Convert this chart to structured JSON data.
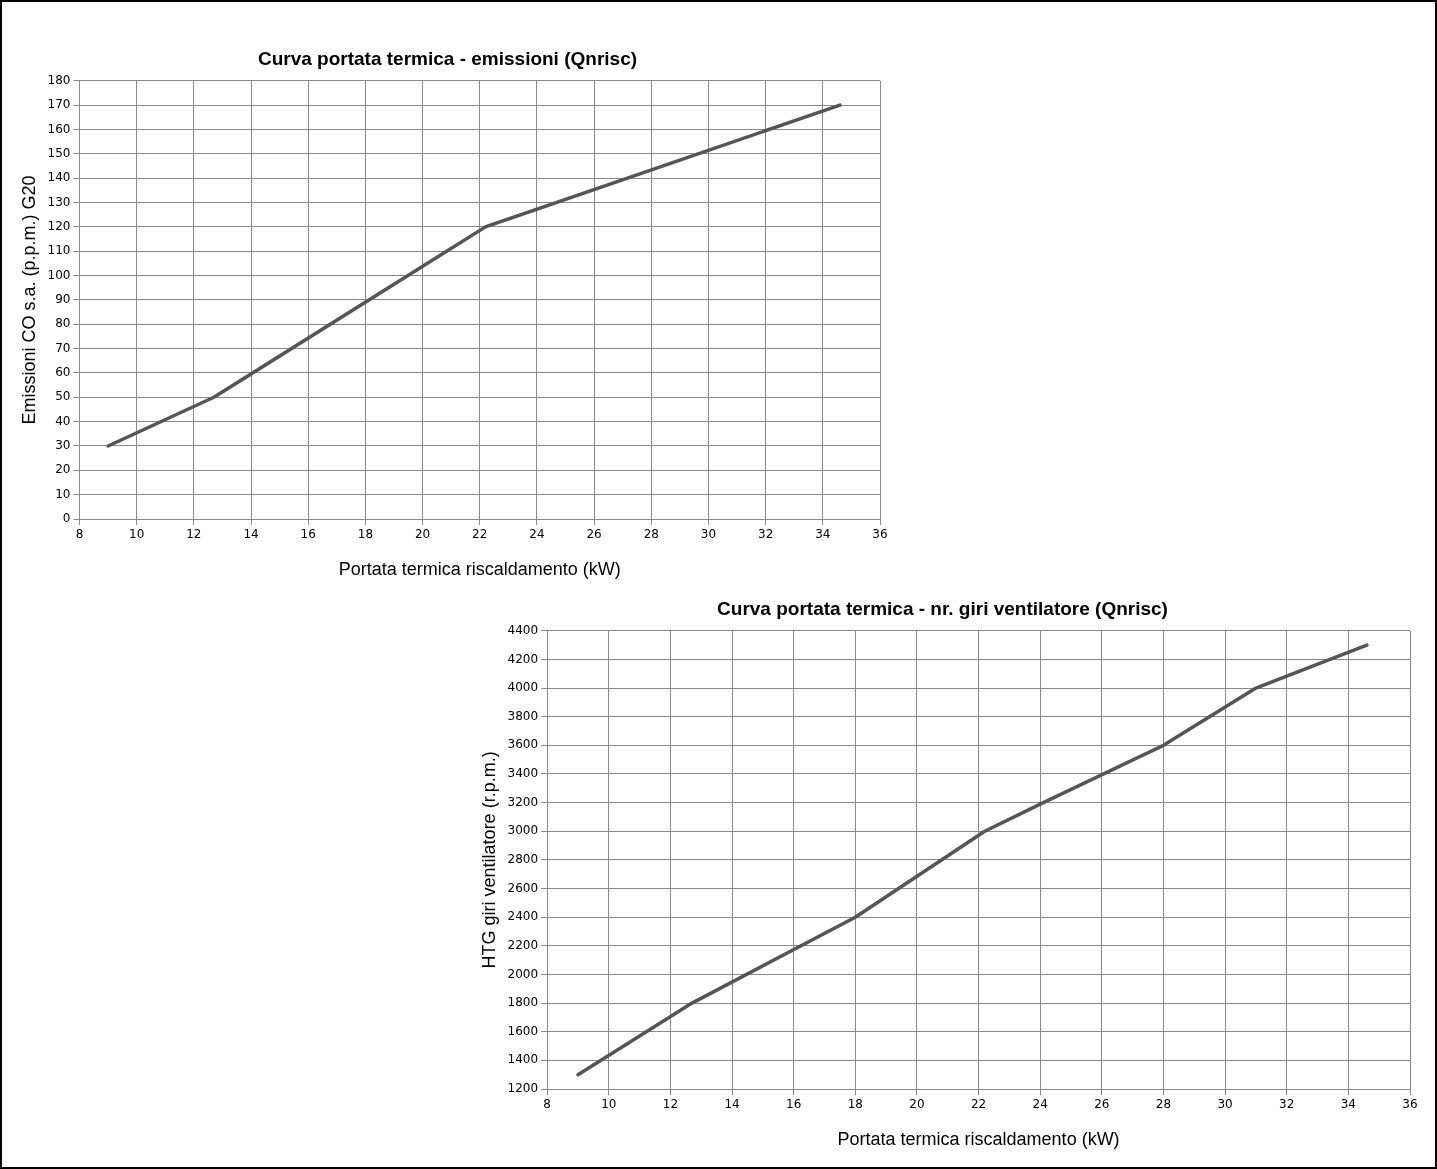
{
  "chart_data": [
    {
      "type": "line",
      "title": "Curva portata termica - emissioni (Qnrisc)",
      "xlabel": "Portata termica riscaldamento (kW)",
      "ylabel": "Emissioni CO s.a. (p.p.m.) G20",
      "x": [
        9,
        12.7,
        22.2,
        34.6
      ],
      "series": [
        {
          "color": "#555555",
          "values": [
            30,
            50,
            120,
            170
          ]
        }
      ],
      "xlim": [
        8,
        36
      ],
      "xticks": [
        8,
        10,
        12,
        14,
        16,
        18,
        20,
        22,
        24,
        26,
        28,
        30,
        32,
        34,
        36
      ],
      "ylim": [
        0,
        180
      ],
      "yticks": [
        0,
        10,
        20,
        30,
        40,
        50,
        60,
        70,
        80,
        90,
        100,
        110,
        120,
        130,
        140,
        150,
        160,
        170,
        180
      ],
      "grid": true,
      "legend": false,
      "marker": "none",
      "line_style": "solid"
    },
    {
      "type": "line",
      "title": "Curva portata termica - nr. giri ventilatore (Qnrisc)",
      "xlabel": "Portata termica riscaldamento (kW)",
      "ylabel": "HTG giri ventilatore (r.p.m.)",
      "x": [
        9,
        12.7,
        18,
        22.2,
        24,
        28,
        31,
        34.6
      ],
      "series": [
        {
          "color": "#555555",
          "values": [
            1300,
            1800,
            2400,
            3000,
            3190,
            3600,
            4000,
            4300
          ]
        }
      ],
      "xlim": [
        8,
        36
      ],
      "xticks": [
        8,
        10,
        12,
        14,
        16,
        18,
        20,
        22,
        24,
        26,
        28,
        30,
        32,
        34,
        36
      ],
      "ylim": [
        1200,
        4400
      ],
      "yticks": [
        1200,
        1400,
        1600,
        1800,
        2000,
        2200,
        2400,
        2600,
        2800,
        3000,
        3200,
        3400,
        3600,
        3800,
        4000,
        4200,
        4400
      ],
      "grid": true,
      "legend": false,
      "marker": "none",
      "line_style": "solid"
    }
  ]
}
